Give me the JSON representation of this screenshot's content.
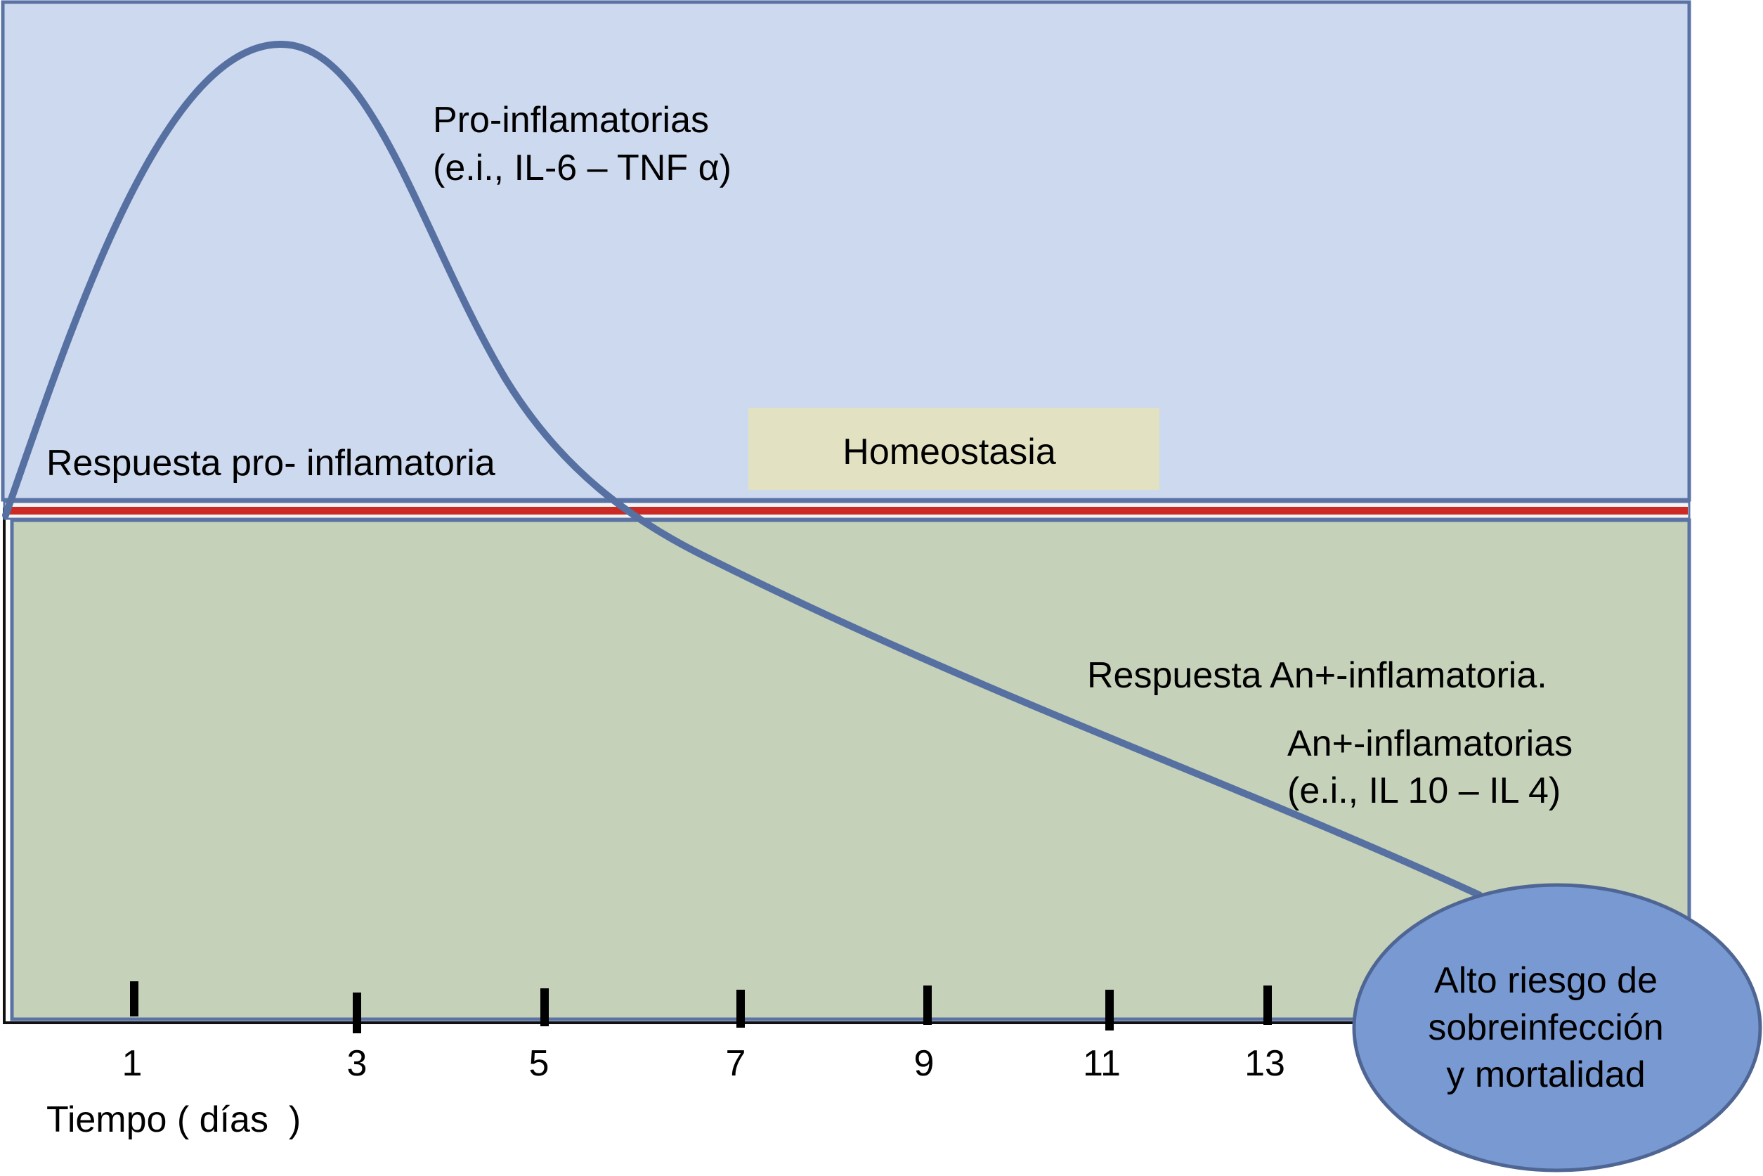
{
  "labels": {
    "pro_title": "Pro-inflamatorias",
    "pro_examples": "(e.i., IL-6 – TNF α)",
    "pro_response": "Respuesta pro- inflamatoria",
    "homeostasis": "Homeostasia",
    "anti_response": "Respuesta An+-inflamatoria.",
    "anti_title": "An+-inflamatorias",
    "anti_examples": "(e.i., IL 10 – IL 4)",
    "x_axis_title": "Tiempo ( días  )"
  },
  "ticks": [
    "1",
    "3",
    "5",
    "7",
    "9",
    "11",
    "13"
  ],
  "risk": {
    "line1": "Alto riesgo de",
    "line2": "sobreinfección",
    "line3": "y mortalidad"
  },
  "colors": {
    "pro_region": "#cdd9ee",
    "anti_region": "#c5d2b9",
    "homeostasis_box": "#e2e2c3",
    "baseline": "#cc2a24",
    "curve": "#5670a1",
    "border": "#5a72a4",
    "risk_fill": "#7899d2"
  }
}
